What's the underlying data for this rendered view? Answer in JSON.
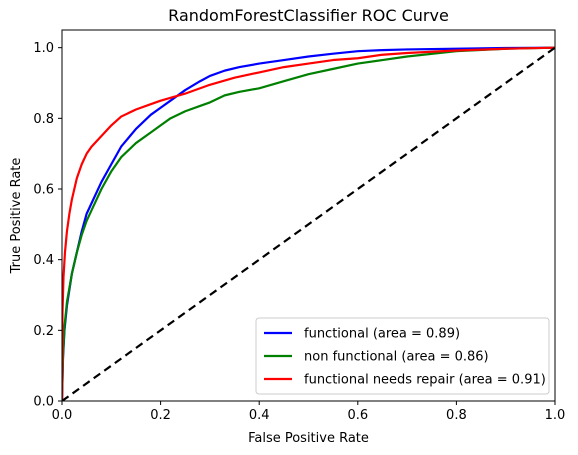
{
  "chart_data": {
    "type": "line",
    "title": "RandomForestClassifier ROC Curve",
    "xlabel": "False Positive Rate",
    "ylabel": "True Positive Rate",
    "xlim": [
      0.0,
      1.0
    ],
    "ylim": [
      0.0,
      1.05
    ],
    "xticks": [
      "0.0",
      "0.2",
      "0.4",
      "0.6",
      "0.8",
      "1.0"
    ],
    "yticks": [
      "0.0",
      "0.2",
      "0.4",
      "0.6",
      "0.8",
      "1.0"
    ],
    "legend_position": "lower-right",
    "grid": false,
    "series": [
      {
        "name": "functional (area = 0.89)",
        "color": "#0000ff",
        "x": [
          0,
          0.002,
          0.005,
          0.01,
          0.02,
          0.03,
          0.04,
          0.05,
          0.06,
          0.08,
          0.1,
          0.12,
          0.15,
          0.18,
          0.2,
          0.22,
          0.25,
          0.28,
          0.3,
          0.33,
          0.36,
          0.4,
          0.45,
          0.5,
          0.55,
          0.6,
          0.65,
          0.7,
          0.8,
          0.9,
          1.0
        ],
        "y": [
          0,
          0.12,
          0.2,
          0.27,
          0.36,
          0.42,
          0.48,
          0.53,
          0.56,
          0.62,
          0.67,
          0.72,
          0.77,
          0.81,
          0.83,
          0.85,
          0.88,
          0.905,
          0.92,
          0.935,
          0.945,
          0.955,
          0.965,
          0.975,
          0.983,
          0.99,
          0.993,
          0.995,
          0.997,
          0.999,
          1.0
        ]
      },
      {
        "name": "non functional (area = 0.86)",
        "color": "#008000",
        "x": [
          0,
          0.002,
          0.005,
          0.01,
          0.02,
          0.03,
          0.04,
          0.05,
          0.06,
          0.08,
          0.1,
          0.12,
          0.15,
          0.18,
          0.2,
          0.22,
          0.25,
          0.28,
          0.3,
          0.33,
          0.36,
          0.4,
          0.45,
          0.5,
          0.55,
          0.6,
          0.65,
          0.7,
          0.8,
          0.9,
          1.0
        ],
        "y": [
          0,
          0.13,
          0.21,
          0.28,
          0.36,
          0.42,
          0.47,
          0.51,
          0.54,
          0.6,
          0.65,
          0.69,
          0.73,
          0.76,
          0.78,
          0.8,
          0.82,
          0.835,
          0.845,
          0.865,
          0.875,
          0.885,
          0.905,
          0.925,
          0.94,
          0.955,
          0.965,
          0.975,
          0.99,
          0.997,
          1.0
        ]
      },
      {
        "name": "functional needs repair (area = 0.91)",
        "color": "#ff0000",
        "x": [
          0,
          0.001,
          0.003,
          0.006,
          0.01,
          0.015,
          0.02,
          0.03,
          0.04,
          0.05,
          0.06,
          0.08,
          0.1,
          0.12,
          0.15,
          0.18,
          0.2,
          0.25,
          0.3,
          0.35,
          0.4,
          0.45,
          0.5,
          0.55,
          0.6,
          0.65,
          0.7,
          0.8,
          0.9,
          1.0
        ],
        "y": [
          0,
          0.25,
          0.35,
          0.42,
          0.48,
          0.53,
          0.57,
          0.63,
          0.67,
          0.7,
          0.72,
          0.75,
          0.78,
          0.805,
          0.825,
          0.84,
          0.85,
          0.87,
          0.895,
          0.915,
          0.93,
          0.945,
          0.955,
          0.965,
          0.97,
          0.98,
          0.985,
          0.992,
          0.997,
          1.0
        ]
      }
    ],
    "reference_line": {
      "x": [
        0,
        1
      ],
      "y": [
        0,
        1
      ],
      "color": "#000000",
      "style": "dashed"
    }
  }
}
